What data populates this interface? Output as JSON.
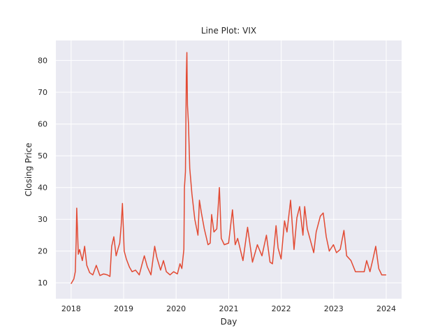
{
  "chart_data": {
    "type": "line",
    "title": "Line Plot: VIX",
    "xlabel": "Day",
    "ylabel": "Closing Price",
    "xlim": [
      "2017-09-17",
      "2024-04-17"
    ],
    "ylim": [
      5.0,
      86.3
    ],
    "grid": true,
    "legend": "none",
    "x_ticks": [
      "2018-01-01",
      "2019-01-01",
      "2020-01-01",
      "2021-01-01",
      "2022-01-01",
      "2023-01-01",
      "2024-01-01"
    ],
    "x_tick_labels": [
      "2018",
      "2019",
      "2020",
      "2021",
      "2022",
      "2023",
      "2024"
    ],
    "y_ticks": [
      10,
      20,
      30,
      40,
      50,
      60,
      70,
      80
    ],
    "y_tick_labels": [
      "10",
      "20",
      "30",
      "40",
      "50",
      "60",
      "70",
      "80"
    ],
    "colors": {
      "background": "#eaeaf2",
      "grid": "#ffffff",
      "line": "#e24a33",
      "text": "#262626"
    },
    "series": [
      {
        "x": [
          "2018-01-02",
          "2018-01-20",
          "2018-01-30",
          "2018-02-05",
          "2018-02-09",
          "2018-02-20",
          "2018-03-01",
          "2018-03-20",
          "2018-04-05",
          "2018-04-20",
          "2018-05-10",
          "2018-06-01",
          "2018-06-25",
          "2018-07-20",
          "2018-08-15",
          "2018-09-10",
          "2018-09-28",
          "2018-10-10",
          "2018-10-25",
          "2018-11-10",
          "2018-11-25",
          "2018-12-05",
          "2018-12-15",
          "2018-12-24",
          "2019-01-05",
          "2019-01-20",
          "2019-02-10",
          "2019-03-01",
          "2019-03-25",
          "2019-04-20",
          "2019-05-10",
          "2019-05-25",
          "2019-06-15",
          "2019-07-10",
          "2019-08-05",
          "2019-08-20",
          "2019-09-15",
          "2019-10-05",
          "2019-10-25",
          "2019-11-20",
          "2019-12-15",
          "2020-01-10",
          "2020-01-28",
          "2020-02-10",
          "2020-02-24",
          "2020-02-28",
          "2020-03-06",
          "2020-03-12",
          "2020-03-16",
          "2020-03-20",
          "2020-03-27",
          "2020-04-05",
          "2020-04-20",
          "2020-05-10",
          "2020-06-01",
          "2020-06-11",
          "2020-06-25",
          "2020-07-15",
          "2020-08-10",
          "2020-08-25",
          "2020-09-04",
          "2020-09-20",
          "2020-10-10",
          "2020-10-28",
          "2020-11-10",
          "2020-12-01",
          "2020-12-31",
          "2021-01-27",
          "2021-02-15",
          "2021-03-04",
          "2021-04-10",
          "2021-05-12",
          "2021-06-15",
          "2021-07-19",
          "2021-08-20",
          "2021-09-20",
          "2021-10-15",
          "2021-11-01",
          "2021-11-26",
          "2021-12-10",
          "2021-12-31",
          "2022-01-24",
          "2022-02-10",
          "2022-03-07",
          "2022-03-31",
          "2022-04-20",
          "2022-05-09",
          "2022-06-01",
          "2022-06-13",
          "2022-07-01",
          "2022-08-15",
          "2022-09-01",
          "2022-09-30",
          "2022-10-20",
          "2022-11-10",
          "2022-12-01",
          "2022-12-30",
          "2023-01-20",
          "2023-02-15",
          "2023-03-13",
          "2023-04-01",
          "2023-05-01",
          "2023-06-01",
          "2023-07-01",
          "2023-08-01",
          "2023-08-18",
          "2023-09-10",
          "2023-10-01",
          "2023-10-20",
          "2023-11-10",
          "2023-12-01",
          "2023-12-29"
        ],
        "values": [
          9.8,
          11.2,
          13.5,
          23.0,
          33.5,
          19.0,
          20.5,
          17.0,
          21.5,
          15.5,
          13.2,
          12.5,
          15.5,
          12.3,
          12.8,
          12.5,
          12.0,
          21.5,
          24.5,
          18.5,
          21.0,
          22.5,
          28.0,
          35.0,
          20.0,
          17.5,
          15.0,
          13.5,
          14.0,
          12.5,
          16.0,
          18.5,
          15.0,
          12.5,
          21.5,
          18.0,
          14.0,
          17.0,
          13.5,
          12.5,
          13.5,
          12.8,
          16.0,
          14.5,
          20.5,
          40.0,
          45.0,
          75.0,
          82.5,
          66.0,
          60.0,
          46.0,
          38.0,
          30.0,
          25.0,
          36.0,
          32.0,
          27.0,
          22.0,
          22.5,
          31.5,
          26.0,
          27.0,
          40.0,
          24.0,
          22.0,
          22.5,
          33.0,
          22.0,
          24.0,
          17.0,
          27.5,
          16.5,
          22.0,
          18.5,
          25.0,
          16.5,
          16.0,
          28.0,
          21.0,
          17.5,
          29.5,
          26.0,
          36.0,
          20.5,
          30.5,
          34.0,
          25.0,
          34.0,
          27.0,
          19.5,
          26.0,
          31.0,
          32.0,
          24.5,
          20.0,
          22.0,
          19.5,
          20.5,
          26.5,
          18.5,
          17.0,
          13.5,
          13.5,
          13.5,
          17.0,
          13.5,
          17.5,
          21.5,
          14.5,
          12.5,
          12.5
        ]
      }
    ]
  }
}
